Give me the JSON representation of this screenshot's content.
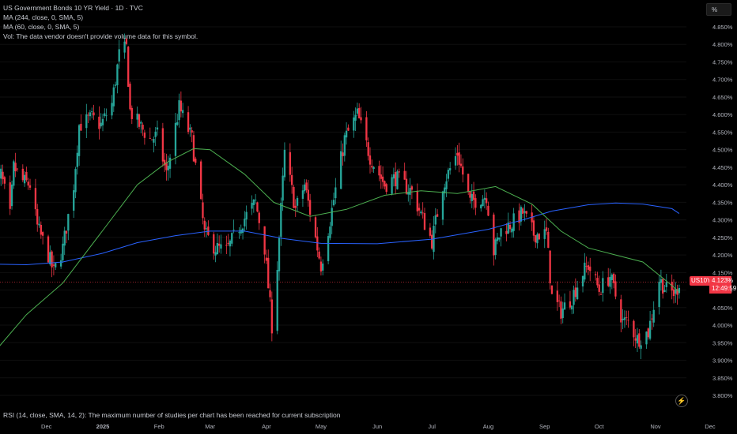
{
  "legend": {
    "title": "US Government Bonds 10 YR Yield · 1D · TVC",
    "ma1": "MA (244, close, 0, SMA, 5)",
    "ma2": "MA (60, close, 0, SMA, 5)",
    "vol": "Vol: The data vendor doesn't provide volume data for this symbol."
  },
  "unit_button": "%",
  "rsi_note": "RSI (14, close, SMA, 14, 2): The maximum number of studies per chart has been reached for current subscription",
  "price_tag": {
    "symbol": "US10Y",
    "price": "4.123%",
    "countdown": "12:49:59"
  },
  "icons": {
    "flash": "lightning-icon"
  },
  "colors": {
    "up": "#26a69a",
    "down": "#f23645",
    "ma244": "#2962ff",
    "ma60": "#4caf50",
    "background": "#000000"
  },
  "chart_data": {
    "type": "candlestick",
    "title": "US Government Bonds 10 YR Yield · 1D · TVC",
    "y_unit": "%",
    "ylim": [
      3.78,
      4.85
    ],
    "y_ticks": [
      "4.850%",
      "4.800%",
      "4.750%",
      "4.700%",
      "4.650%",
      "4.600%",
      "4.550%",
      "4.500%",
      "4.450%",
      "4.400%",
      "4.350%",
      "4.300%",
      "4.250%",
      "4.200%",
      "4.150%",
      "4.100%",
      "4.050%",
      "4.000%",
      "3.950%",
      "3.900%",
      "3.850%",
      "3.800%"
    ],
    "x_ticks": [
      {
        "label": "Dec",
        "x": "2024-12-01"
      },
      {
        "label": "2025",
        "x": "2025-01-01"
      },
      {
        "label": "Feb",
        "x": "2025-02-01"
      },
      {
        "label": "Mar",
        "x": "2025-03-01"
      },
      {
        "label": "Apr",
        "x": "2025-04-01"
      },
      {
        "label": "May",
        "x": "2025-05-01"
      },
      {
        "label": "Jun",
        "x": "2025-06-01"
      },
      {
        "label": "Jul",
        "x": "2025-07-01"
      },
      {
        "label": "Aug",
        "x": "2025-08-01"
      },
      {
        "label": "Sep",
        "x": "2025-09-01"
      },
      {
        "label": "Oct",
        "x": "2025-10-01"
      },
      {
        "label": "Nov",
        "x": "2025-11-01"
      },
      {
        "label": "Dec",
        "x": "2025-12-01"
      }
    ],
    "x_range": [
      "2024-11-01",
      "2025-12-12"
    ],
    "last_price": 4.123,
    "close_anchors": [
      [
        "2024-11-01",
        4.33
      ],
      [
        "2024-11-06",
        4.43
      ],
      [
        "2024-11-11",
        4.31
      ],
      [
        "2024-11-13",
        4.45
      ],
      [
        "2024-11-18",
        4.41
      ],
      [
        "2024-11-22",
        4.4
      ],
      [
        "2024-11-26",
        4.28
      ],
      [
        "2024-12-02",
        4.2
      ],
      [
        "2024-12-05",
        4.15
      ],
      [
        "2024-12-10",
        4.22
      ],
      [
        "2024-12-16",
        4.4
      ],
      [
        "2024-12-19",
        4.57
      ],
      [
        "2024-12-26",
        4.59
      ],
      [
        "2024-12-31",
        4.57
      ],
      [
        "2025-01-06",
        4.63
      ],
      [
        "2025-01-10",
        4.77
      ],
      [
        "2025-01-14",
        4.79
      ],
      [
        "2025-01-16",
        4.61
      ],
      [
        "2025-01-21",
        4.57
      ],
      [
        "2025-01-27",
        4.53
      ],
      [
        "2025-01-31",
        4.54
      ],
      [
        "2025-02-05",
        4.43
      ],
      [
        "2025-02-12",
        4.62
      ],
      [
        "2025-02-19",
        4.53
      ],
      [
        "2025-02-26",
        4.26
      ],
      [
        "2025-03-04",
        4.22
      ],
      [
        "2025-03-10",
        4.21
      ],
      [
        "2025-03-18",
        4.29
      ],
      [
        "2025-03-26",
        4.35
      ],
      [
        "2025-03-31",
        4.22
      ],
      [
        "2025-04-04",
        4.0
      ],
      [
        "2025-04-07",
        4.17
      ],
      [
        "2025-04-09",
        4.33
      ],
      [
        "2025-04-11",
        4.49
      ],
      [
        "2025-04-17",
        4.33
      ],
      [
        "2025-04-22",
        4.4
      ],
      [
        "2025-05-01",
        4.17
      ],
      [
        "2025-05-06",
        4.3
      ],
      [
        "2025-05-14",
        4.53
      ],
      [
        "2025-05-21",
        4.6
      ],
      [
        "2025-05-28",
        4.48
      ],
      [
        "2025-06-05",
        4.4
      ],
      [
        "2025-06-11",
        4.42
      ],
      [
        "2025-06-20",
        4.38
      ],
      [
        "2025-06-27",
        4.29
      ],
      [
        "2025-07-01",
        4.24
      ],
      [
        "2025-07-07",
        4.4
      ],
      [
        "2025-07-15",
        4.49
      ],
      [
        "2025-07-22",
        4.35
      ],
      [
        "2025-07-31",
        4.37
      ],
      [
        "2025-08-04",
        4.21
      ],
      [
        "2025-08-08",
        4.27
      ],
      [
        "2025-08-14",
        4.29
      ],
      [
        "2025-08-20",
        4.32
      ],
      [
        "2025-08-26",
        4.26
      ],
      [
        "2025-09-02",
        4.26
      ],
      [
        "2025-09-05",
        4.08
      ],
      [
        "2025-09-10",
        4.04
      ],
      [
        "2025-09-16",
        4.08
      ],
      [
        "2025-09-22",
        4.15
      ],
      [
        "2025-09-25",
        4.17
      ],
      [
        "2025-10-01",
        4.1
      ],
      [
        "2025-10-07",
        4.14
      ],
      [
        "2025-10-14",
        4.01
      ],
      [
        "2025-10-17",
        4.01
      ],
      [
        "2025-10-22",
        3.96
      ],
      [
        "2025-10-28",
        3.98
      ],
      [
        "2025-11-03",
        4.13
      ],
      [
        "2025-11-07",
        4.1
      ],
      [
        "2025-11-12",
        4.09
      ],
      [
        "2025-11-14",
        4.123
      ]
    ],
    "series": [
      {
        "name": "MA (244, close, 0, SMA, 5)",
        "color": "#2962ff",
        "points": [
          [
            "2024-11-01",
            4.174
          ],
          [
            "2024-11-20",
            4.172
          ],
          [
            "2024-12-10",
            4.18
          ],
          [
            "2025-01-01",
            4.205
          ],
          [
            "2025-01-20",
            4.235
          ],
          [
            "2025-02-10",
            4.255
          ],
          [
            "2025-03-01",
            4.268
          ],
          [
            "2025-03-20",
            4.268
          ],
          [
            "2025-04-10",
            4.247
          ],
          [
            "2025-05-01",
            4.233
          ],
          [
            "2025-06-01",
            4.232
          ],
          [
            "2025-07-01",
            4.245
          ],
          [
            "2025-08-01",
            4.273
          ],
          [
            "2025-08-20",
            4.3
          ],
          [
            "2025-09-05",
            4.325
          ],
          [
            "2025-09-25",
            4.343
          ],
          [
            "2025-10-10",
            4.348
          ],
          [
            "2025-10-25",
            4.345
          ],
          [
            "2025-11-10",
            4.332
          ],
          [
            "2025-11-14",
            4.318
          ]
        ]
      },
      {
        "name": "MA (60, close, 0, SMA, 5)",
        "color": "#4caf50",
        "points": [
          [
            "2024-11-01",
            3.915
          ],
          [
            "2024-11-20",
            4.03
          ],
          [
            "2024-12-10",
            4.12
          ],
          [
            "2025-01-01",
            4.27
          ],
          [
            "2025-01-20",
            4.4
          ],
          [
            "2025-02-05",
            4.463
          ],
          [
            "2025-02-20",
            4.503
          ],
          [
            "2025-03-01",
            4.5
          ],
          [
            "2025-03-20",
            4.43
          ],
          [
            "2025-04-05",
            4.35
          ],
          [
            "2025-04-25",
            4.31
          ],
          [
            "2025-05-15",
            4.33
          ],
          [
            "2025-06-05",
            4.37
          ],
          [
            "2025-06-25",
            4.383
          ],
          [
            "2025-07-15",
            4.375
          ],
          [
            "2025-08-05",
            4.395
          ],
          [
            "2025-08-25",
            4.345
          ],
          [
            "2025-09-10",
            4.268
          ],
          [
            "2025-09-25",
            4.22
          ],
          [
            "2025-10-10",
            4.2
          ],
          [
            "2025-10-25",
            4.18
          ],
          [
            "2025-11-05",
            4.134
          ],
          [
            "2025-11-14",
            4.095
          ]
        ]
      }
    ]
  }
}
